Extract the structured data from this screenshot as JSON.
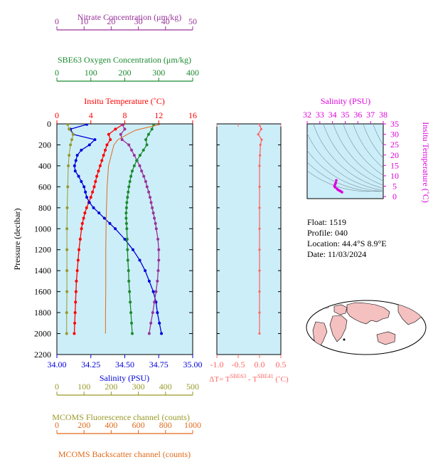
{
  "info": {
    "float": "Float:  1519",
    "profile": "Profile:  040",
    "location": "Location:  44.4°S   8.9°E",
    "date": "Date:  11/03/2024"
  },
  "chart_data": [
    {
      "type": "line",
      "title": "",
      "ylabel": "Pressure (decibar)",
      "ylim": [
        2200,
        0
      ],
      "yticks": [
        "0",
        "200",
        "400",
        "600",
        "800",
        "1000",
        "1200",
        "1400",
        "1600",
        "1800",
        "2000",
        "2200"
      ],
      "axes": {
        "nitrate": {
          "label": "Nitrate Concentration (μm/kg)",
          "ticks": [
            "0",
            "10",
            "20",
            "30",
            "40",
            "50"
          ],
          "range": [
            0,
            50
          ],
          "color": "#993399"
        },
        "oxygen": {
          "label": "SBE63 Oxygen Concentration (μm/kg)",
          "ticks": [
            "0",
            "100",
            "200",
            "300",
            "400"
          ],
          "range": [
            0,
            400
          ],
          "color": "#1a8a2e"
        },
        "temperature": {
          "label": "Insitu Temperature (˚C)",
          "ticks": [
            "0",
            "4",
            "8",
            "12",
            "16"
          ],
          "range": [
            0,
            16
          ],
          "color": "#ff0000"
        },
        "salinity": {
          "label": "Salinity (PSU)",
          "ticks": [
            "34.00",
            "34.25",
            "34.50",
            "34.75",
            "35.00"
          ],
          "range": [
            34.0,
            35.0
          ],
          "color": "#0000dd"
        },
        "fluorescence": {
          "label": "MCOMS Fluorescence channel (counts)",
          "ticks": [
            "0",
            "100",
            "200",
            "300",
            "400",
            "500"
          ],
          "range": [
            0,
            500
          ],
          "color": "#99992a"
        },
        "backscatter": {
          "label": "MCOMS Backscatter channel (counts)",
          "ticks": [
            "0",
            "200",
            "400",
            "600",
            "800",
            "1000"
          ],
          "range": [
            0,
            1000
          ],
          "color": "#e06a1a"
        }
      },
      "series": [
        {
          "axis": "temperature",
          "color": "#ff0000",
          "pressure": [
            5,
            50,
            100,
            150,
            200,
            250,
            300,
            350,
            400,
            450,
            500,
            550,
            600,
            650,
            700,
            750,
            800,
            850,
            900,
            950,
            1000,
            1100,
            1200,
            1300,
            1400,
            1500,
            1600,
            1700,
            1800,
            1900,
            2000
          ],
          "values": [
            7.8,
            6.9,
            6.1,
            6.3,
            5.9,
            5.7,
            5.5,
            5.3,
            5.1,
            4.9,
            4.7,
            4.55,
            4.4,
            4.2,
            4.0,
            3.75,
            3.5,
            3.3,
            3.15,
            3.0,
            2.9,
            2.75,
            2.6,
            2.5,
            2.4,
            2.3,
            2.25,
            2.2,
            2.15,
            2.1,
            2.05
          ]
        },
        {
          "axis": "salinity",
          "color": "#0000dd",
          "pressure": [
            5,
            50,
            100,
            150,
            200,
            250,
            300,
            350,
            400,
            450,
            500,
            550,
            600,
            650,
            700,
            750,
            800,
            850,
            900,
            950,
            1000,
            1100,
            1200,
            1300,
            1400,
            1500,
            1600,
            1700,
            1800,
            1900,
            2000
          ],
          "values": [
            34.22,
            34.1,
            34.12,
            34.28,
            34.24,
            34.18,
            34.15,
            34.14,
            34.13,
            34.135,
            34.16,
            34.18,
            34.2,
            34.21,
            34.22,
            34.24,
            34.27,
            34.31,
            34.35,
            34.39,
            34.43,
            34.5,
            34.56,
            34.61,
            34.65,
            34.68,
            34.71,
            34.73,
            34.74,
            34.755,
            34.77
          ]
        },
        {
          "axis": "nitrate",
          "color": "#993399",
          "pressure": [
            5,
            50,
            100,
            150,
            200,
            250,
            300,
            350,
            400,
            450,
            500,
            550,
            600,
            650,
            700,
            750,
            800,
            850,
            900,
            950,
            1000,
            1100,
            1200,
            1300,
            1400,
            1500,
            1600,
            1700,
            1800,
            1900,
            2000
          ],
          "values": [
            24,
            25,
            23.5,
            24,
            26.5,
            27.5,
            28.5,
            29.5,
            30.5,
            31.2,
            32,
            32.7,
            33.2,
            33.8,
            34.3,
            34.7,
            35.1,
            35.5,
            35.9,
            36.3,
            36.6,
            37.2,
            37.5,
            37.5,
            37.3,
            37,
            36.5,
            35.9,
            35.3,
            34.6,
            34
          ]
        },
        {
          "axis": "oxygen",
          "color": "#1a8a2e",
          "pressure": [
            5,
            50,
            100,
            150,
            200,
            250,
            300,
            350,
            400,
            450,
            500,
            550,
            600,
            650,
            700,
            750,
            800,
            850,
            900,
            950,
            1000,
            1100,
            1200,
            1300,
            1400,
            1500,
            1600,
            1700,
            1800,
            1900,
            2000
          ],
          "values": [
            285,
            280,
            270,
            262,
            265,
            255,
            245,
            235,
            228,
            222,
            218,
            215,
            212,
            210,
            208,
            206,
            205,
            204,
            204,
            205,
            206,
            207,
            208,
            209,
            211,
            212,
            214,
            216,
            218,
            220,
            222
          ]
        },
        {
          "axis": "fluorescence",
          "color": "#99992a",
          "pressure": [
            5,
            50,
            100,
            150,
            200,
            300,
            400,
            600,
            800,
            1000,
            1200,
            1400,
            1600,
            1800,
            2000
          ],
          "values": [
            40,
            45,
            60,
            55,
            50,
            45,
            42,
            40,
            38,
            37,
            37,
            37,
            37,
            36,
            36
          ]
        },
        {
          "axis": "backscatter",
          "color": "#e06a1a",
          "pressure": [
            5,
            60,
            100,
            150,
            200,
            300,
            400,
            600,
            800,
            1000,
            1200,
            1400,
            1600,
            1800,
            2000
          ],
          "values": [
            760,
            580,
            520,
            450,
            420,
            400,
            380,
            370,
            365,
            362,
            360,
            360,
            360,
            358,
            358
          ]
        }
      ]
    },
    {
      "type": "line",
      "title": "",
      "xlabel_parts": [
        "ΔT= T",
        "SBE63",
        " - T",
        "SBE41",
        " (˚C)"
      ],
      "xticks": [
        "-1.0",
        "-0.5",
        "0.0",
        "0.5"
      ],
      "xlim": [
        -1.0,
        0.5
      ],
      "ylim": [
        2200,
        0
      ],
      "series": [
        {
          "color": "#ff6666",
          "pressure": [
            0,
            50,
            100,
            150,
            200,
            300,
            400,
            600,
            800,
            1000,
            1200,
            1400,
            1600,
            1800,
            2000
          ],
          "values": [
            0.0,
            0.04,
            -0.03,
            0.05,
            0.02,
            0.01,
            0.0,
            0.0,
            0.0,
            0.0,
            0.0,
            0.0,
            0.0,
            0.0,
            0.0
          ]
        }
      ]
    },
    {
      "type": "scatter",
      "title": "",
      "xlabel": "Salinity (PSU)",
      "ylabel": "Insitu Temperature (˚C)",
      "xticks": [
        "32",
        "33",
        "34",
        "35",
        "36",
        "37",
        "38"
      ],
      "yticks": [
        "0",
        "5",
        "10",
        "15",
        "20",
        "25",
        "30",
        "35"
      ],
      "xlim": [
        32,
        38
      ],
      "ylim": [
        -1,
        35
      ],
      "points": [
        [
          34.3,
          7.8
        ],
        [
          34.25,
          6.5
        ],
        [
          34.2,
          5.8
        ],
        [
          34.15,
          5.0
        ],
        [
          34.2,
          4.5
        ],
        [
          34.35,
          3.8
        ],
        [
          34.5,
          3.0
        ],
        [
          34.65,
          2.5
        ],
        [
          34.75,
          2.1
        ],
        [
          34.6,
          2.7
        ],
        [
          34.4,
          3.4
        ]
      ]
    }
  ]
}
